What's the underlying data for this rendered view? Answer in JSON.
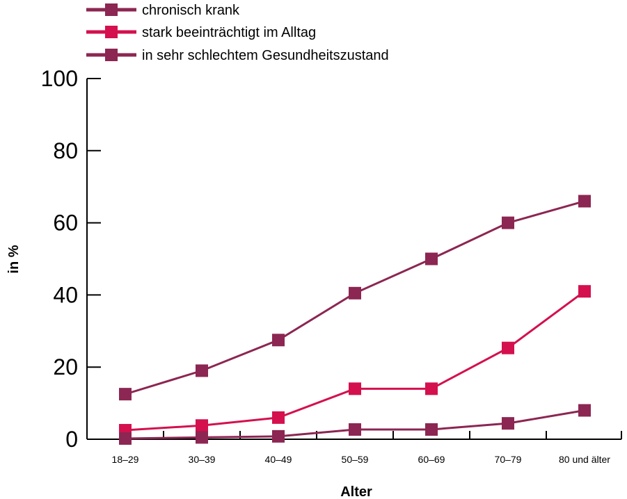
{
  "chart_data": {
    "type": "line",
    "title": "",
    "xlabel": "Alter",
    "ylabel": "in %",
    "ylim": [
      0,
      100
    ],
    "yticks": [
      "0",
      "20",
      "40",
      "60",
      "80",
      "100"
    ],
    "categories": [
      "18–29",
      "30–39",
      "40–49",
      "50–59",
      "60–69",
      "70–79",
      "80 und älter"
    ],
    "grid": false,
    "legend_position": "top-left",
    "series": [
      {
        "name": "chronisch krank",
        "color": "#8c2652",
        "marker": "square",
        "values": [
          12.5,
          19,
          27.5,
          40.5,
          50,
          60,
          66
        ]
      },
      {
        "name": "stark beeinträchtigt im Alltag",
        "color": "#d4104e",
        "marker": "square",
        "values": [
          2.5,
          3.8,
          6,
          14,
          14,
          25.3,
          41
        ]
      },
      {
        "name": "in sehr schlechtem Gesundheitszustand",
        "color": "#8c2652",
        "marker": "square",
        "values": [
          0.2,
          0.5,
          0.8,
          2.7,
          2.7,
          4.4,
          8
        ]
      }
    ]
  }
}
